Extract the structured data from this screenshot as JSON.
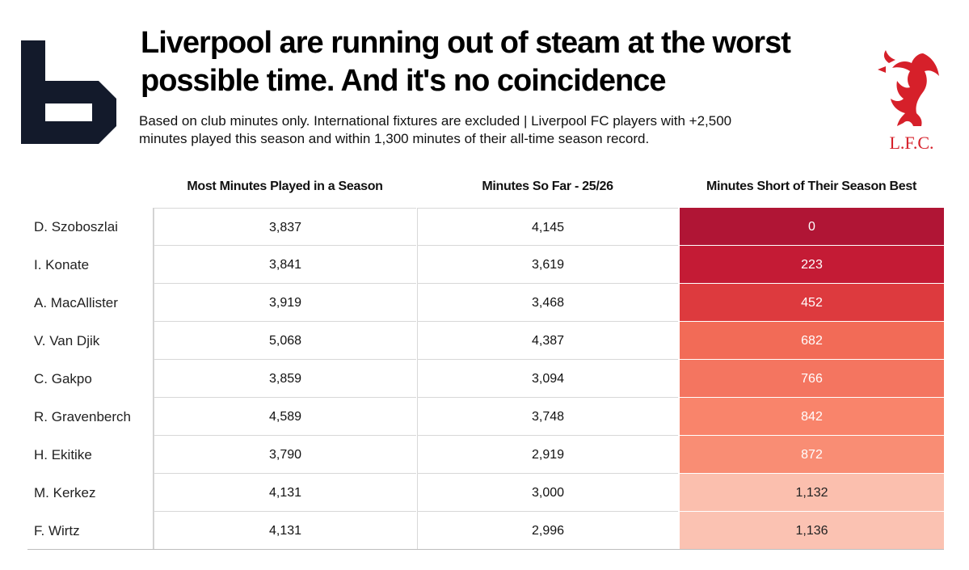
{
  "header": {
    "title_line1": "Liverpool are running out of steam at the worst",
    "title_line2": "possible time. And it's no coincidence",
    "subtitle_line1": "Based on club minutes only. International fixtures are excluded | Liverpool FC players with +2,500",
    "subtitle_line2": "minutes played this season and within 1,300 minutes of their all-time season record.",
    "crest_text": "L.F.C."
  },
  "colors": {
    "brand_dark": "#131a2b",
    "crest_red": "#d6202a",
    "scale_low": "#fbc4b6",
    "scale_high": "#b01535"
  },
  "chart_data": {
    "type": "table",
    "columns": [
      "Most Minutes Played in a Season",
      "Minutes So Far - 25/26",
      "Minutes Short of Their Season Best"
    ],
    "rows": [
      {
        "player": "D. Szoboszlai",
        "best": "3,837",
        "so_far": "4,145",
        "short": "0",
        "short_value": 0
      },
      {
        "player": "I. Konate",
        "best": "3,841",
        "so_far": "3,619",
        "short": "223",
        "short_value": 223
      },
      {
        "player": "A. MacAllister",
        "best": "3,919",
        "so_far": "3,468",
        "short": "452",
        "short_value": 452
      },
      {
        "player": "V. Van Djik",
        "best": "5,068",
        "so_far": "4,387",
        "short": "682",
        "short_value": 682
      },
      {
        "player": "C. Gakpo",
        "best": "3,859",
        "so_far": "3,094",
        "short": "766",
        "short_value": 766
      },
      {
        "player": "R. Gravenberch",
        "best": "4,589",
        "so_far": "3,748",
        "short": "842",
        "short_value": 842
      },
      {
        "player": "H. Ekitike",
        "best": "3,790",
        "so_far": "2,919",
        "short": "872",
        "short_value": 872
      },
      {
        "player": "M. Kerkez",
        "best": "4,131",
        "so_far": "3,000",
        "short": "1,132",
        "short_value": 1132
      },
      {
        "player": "F. Wirtz",
        "best": "4,131",
        "so_far": "2,996",
        "short": "1,136",
        "short_value": 1136
      }
    ],
    "heatmap_column": "Minutes Short of Their Season Best",
    "heat_colors": [
      "#b01535",
      "#c41b35",
      "#dd3a3e",
      "#f26b57",
      "#f47560",
      "#f9846b",
      "#f98d74",
      "#fbbfae",
      "#fbc2b2"
    ]
  }
}
